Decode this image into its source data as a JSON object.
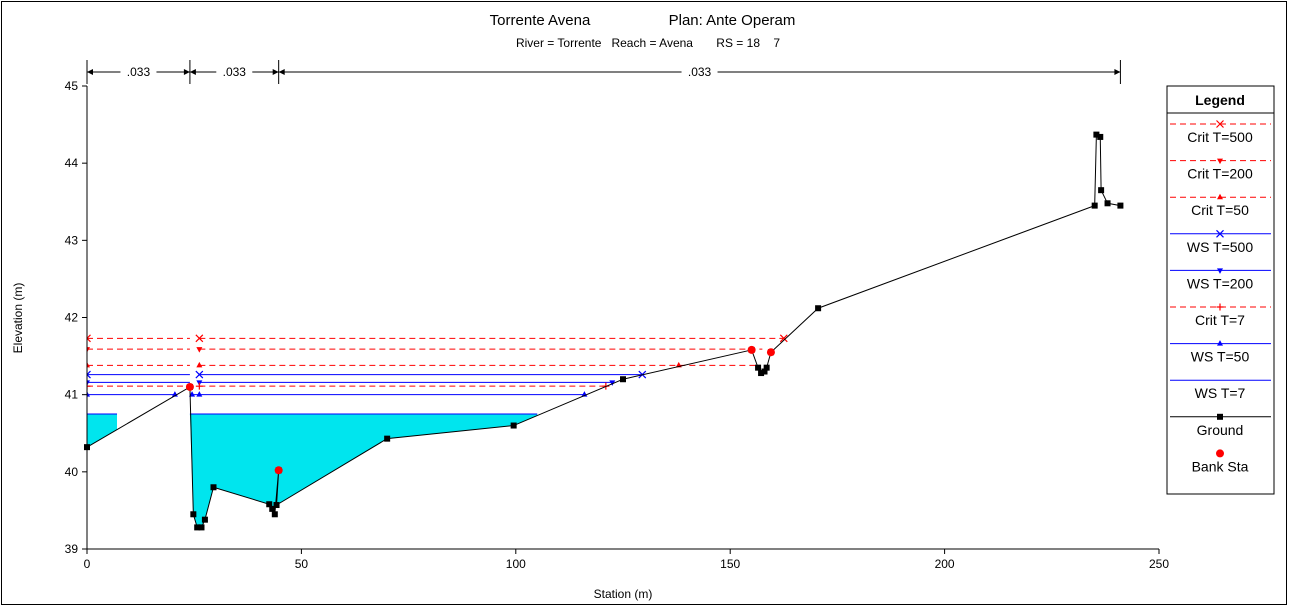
{
  "chart_data": {
    "type": "line",
    "title": "Torrente Avena",
    "plan": "Plan: Ante Operam",
    "subtitle": "River = Torrente   Reach = Avena       RS = 18    7",
    "xlabel": "Station (m)",
    "ylabel": "Elevation (m)",
    "xlim": [
      0,
      250
    ],
    "ylim": [
      39,
      45
    ],
    "x_ticks": [
      "0",
      "50",
      "100",
      "150",
      "200",
      "250"
    ],
    "y_ticks": [
      "39",
      "40",
      "41",
      "42",
      "43",
      "44",
      "45"
    ],
    "mannings_n": [
      {
        "label": ".033",
        "from": 0,
        "to": 24
      },
      {
        "label": ".033",
        "from": 24,
        "to": 44.7
      },
      {
        "label": ".033",
        "from": 44.7,
        "to": 241
      }
    ],
    "legend_title": "Legend",
    "legend_position": "right",
    "ground": {
      "name": "Ground",
      "color": "#000000",
      "points": [
        [
          0,
          40.32
        ],
        [
          24,
          41.1
        ],
        [
          24.8,
          39.45
        ],
        [
          25.7,
          39.28
        ],
        [
          26.7,
          39.28
        ],
        [
          27.5,
          39.38
        ],
        [
          29.5,
          39.8
        ],
        [
          42.5,
          39.58
        ],
        [
          43.2,
          39.52
        ],
        [
          43.8,
          39.45
        ],
        [
          44.7,
          40.02
        ],
        [
          44.2,
          39.57
        ],
        [
          70,
          40.43
        ],
        [
          99.5,
          40.6
        ],
        [
          125,
          41.2
        ],
        [
          155,
          41.58
        ],
        [
          156.5,
          41.35
        ],
        [
          157.2,
          41.28
        ],
        [
          158,
          41.3
        ],
        [
          158.5,
          41.35
        ],
        [
          159.5,
          41.55
        ],
        [
          170.5,
          42.12
        ],
        [
          235,
          43.45
        ],
        [
          235.4,
          44.37
        ],
        [
          236.3,
          44.34
        ],
        [
          236.5,
          43.65
        ],
        [
          238,
          43.48
        ],
        [
          241,
          43.45
        ]
      ]
    },
    "bank_stations": {
      "name": "Bank Sta",
      "color": "#ff0000",
      "points": [
        [
          24,
          41.1
        ],
        [
          44.7,
          40.02
        ],
        [
          155,
          41.58
        ],
        [
          159.5,
          41.55
        ]
      ]
    },
    "water_fill": {
      "color": "#00e5ee",
      "elevation": 40.75,
      "segments": [
        [
          0,
          7
        ],
        [
          24,
          105
        ]
      ]
    },
    "series": [
      {
        "name": "Crit T=500",
        "elevation": 41.73,
        "color": "#ff0000",
        "dashed": true,
        "marker": "x",
        "segments": [
          [
            0,
            24
          ],
          [
            26.2,
            162.5
          ]
        ],
        "markers_x": [
          0,
          26.2,
          162.5
        ]
      },
      {
        "name": "Crit T=200",
        "elevation": 41.59,
        "color": "#ff0000",
        "dashed": true,
        "marker": "tri-down",
        "segments": [
          [
            0,
            24
          ],
          [
            26.2,
            157.5
          ]
        ],
        "markers_x": [
          0,
          26.2
        ]
      },
      {
        "name": "Crit T=50",
        "elevation": 41.38,
        "color": "#ff0000",
        "dashed": true,
        "marker": "tri-up",
        "segments": [
          [
            0,
            24
          ],
          [
            26.2,
            157
          ]
        ],
        "markers_x": [
          0,
          26.2,
          138
        ]
      },
      {
        "name": "WS T=500",
        "elevation": 41.26,
        "color": "#0000ff",
        "dashed": false,
        "marker": "x",
        "segments": [
          [
            0,
            24
          ],
          [
            26.2,
            129.5
          ]
        ],
        "markers_x": [
          0,
          26.2,
          129.5
        ]
      },
      {
        "name": "WS T=200",
        "elevation": 41.16,
        "color": "#0000ff",
        "dashed": false,
        "marker": "tri-down",
        "segments": [
          [
            0,
            24
          ],
          [
            26.2,
            122.5
          ]
        ],
        "markers_x": [
          0,
          26.2,
          122.5
        ]
      },
      {
        "name": "Crit T=7",
        "elevation": 41.11,
        "color": "#ff0000",
        "dashed": true,
        "marker": "plus",
        "segments": [
          [
            0,
            24
          ],
          [
            26.2,
            121
          ]
        ],
        "markers_x": [
          0,
          26.2,
          121
        ]
      },
      {
        "name": "WS T=50",
        "elevation": 41.0,
        "color": "#0000ff",
        "dashed": false,
        "marker": "tri-up",
        "segments": [
          [
            0,
            20.5
          ],
          [
            24.5,
            116
          ]
        ],
        "markers_x": [
          0,
          20.5,
          24.5,
          26.2,
          116
        ]
      },
      {
        "name": "WS T=7",
        "elevation": 40.75,
        "color": "#0000ff",
        "dashed": false,
        "marker": "none",
        "segments": [
          [
            0,
            7
          ],
          [
            24,
            105
          ]
        ],
        "markers_x": []
      }
    ]
  }
}
